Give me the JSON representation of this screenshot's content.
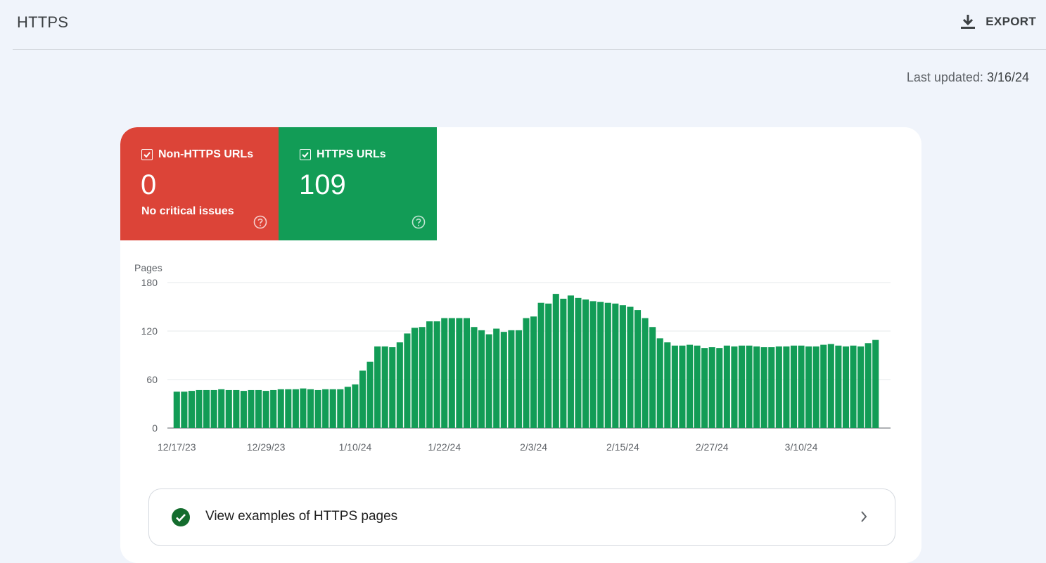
{
  "header": {
    "title": "HTTPS",
    "export_label": "EXPORT"
  },
  "last_updated": {
    "label": "Last updated:",
    "value": "3/16/24"
  },
  "metrics": [
    {
      "label": "Non-HTTPS URLs",
      "value": "0",
      "sub": "No critical issues",
      "color": "#dc4438",
      "checked": true
    },
    {
      "label": "HTTPS URLs",
      "value": "109",
      "sub": "",
      "color": "#129c56",
      "checked": true
    }
  ],
  "chart_data": {
    "type": "bar",
    "ylabel": "Pages",
    "ylim": [
      0,
      180
    ],
    "yticks": [
      0,
      60,
      120,
      180
    ],
    "xtick_labels": [
      "12/17/23",
      "12/29/23",
      "1/10/24",
      "1/22/24",
      "2/3/24",
      "2/15/24",
      "2/27/24",
      "3/10/24"
    ],
    "x_start": "12/17/23",
    "x_end": "3/16/24",
    "series": [
      {
        "color": "#129c56",
        "values": [
          45,
          45,
          46,
          47,
          47,
          47,
          48,
          47,
          47,
          46,
          47,
          47,
          46,
          47,
          48,
          48,
          48,
          49,
          48,
          47,
          48,
          48,
          48,
          51,
          54,
          71,
          82,
          101,
          101,
          100,
          106,
          117,
          124,
          125,
          132,
          132,
          136,
          136,
          136,
          136,
          125,
          121,
          116,
          123,
          119,
          121,
          121,
          136,
          138,
          155,
          154,
          166,
          160,
          164,
          161,
          159,
          157,
          156,
          155,
          154,
          152,
          150,
          146,
          136,
          125,
          111,
          106,
          102,
          102,
          103,
          102,
          99,
          100,
          99,
          102,
          101,
          102,
          102,
          101,
          100,
          100,
          101,
          101,
          102,
          102,
          101,
          101,
          103,
          104,
          102,
          101,
          102,
          101,
          105,
          109
        ]
      }
    ],
    "grid": true,
    "legend": "none"
  },
  "examples": {
    "label": "View examples of HTTPS pages"
  },
  "colors": {
    "background": "#f0f4fb",
    "error": "#dc4438",
    "success": "#129c56"
  }
}
